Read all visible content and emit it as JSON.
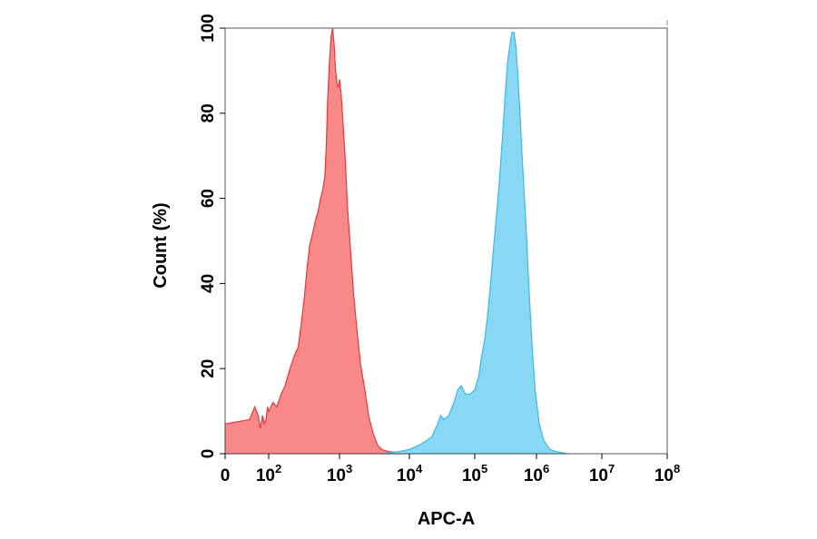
{
  "chart_data": {
    "type": "area",
    "title": "",
    "xlabel": "APC-A",
    "ylabel": "Count  (%)",
    "x_scale": "biexponential",
    "xlim": [
      0,
      100000000
    ],
    "ylim": [
      0,
      100
    ],
    "x_ticks": [
      {
        "value": 0,
        "base": "0",
        "exp": ""
      },
      {
        "value": 100,
        "base": "10",
        "exp": "2"
      },
      {
        "value": 1000,
        "base": "10",
        "exp": "3"
      },
      {
        "value": 10000,
        "base": "10",
        "exp": "4"
      },
      {
        "value": 100000,
        "base": "10",
        "exp": "5"
      },
      {
        "value": 1000000,
        "base": "10",
        "exp": "6"
      },
      {
        "value": 10000000,
        "base": "10",
        "exp": "7"
      },
      {
        "value": 100000000,
        "base": "10",
        "exp": "8"
      }
    ],
    "y_ticks": [
      0,
      20,
      40,
      60,
      80,
      100
    ],
    "grid": false,
    "legend": "none",
    "series": [
      {
        "fill": "#f98888",
        "stroke": "#e8383a",
        "points": [
          [
            0,
            7
          ],
          [
            12,
            8
          ],
          [
            22,
            11
          ],
          [
            32,
            9
          ],
          [
            40,
            6
          ],
          [
            52,
            9
          ],
          [
            62,
            7
          ],
          [
            75,
            8
          ],
          [
            88,
            11
          ],
          [
            100,
            10
          ],
          [
            115,
            12
          ],
          [
            130,
            11
          ],
          [
            150,
            14
          ],
          [
            170,
            16
          ],
          [
            200,
            20
          ],
          [
            230,
            23
          ],
          [
            260,
            25
          ],
          [
            290,
            31
          ],
          [
            320,
            37
          ],
          [
            350,
            44
          ],
          [
            380,
            49
          ],
          [
            420,
            52
          ],
          [
            460,
            55
          ],
          [
            500,
            57
          ],
          [
            540,
            60
          ],
          [
            580,
            62
          ],
          [
            620,
            65
          ],
          [
            650,
            72
          ],
          [
            680,
            83
          ],
          [
            720,
            92
          ],
          [
            760,
            98
          ],
          [
            800,
            100
          ],
          [
            840,
            96
          ],
          [
            880,
            90
          ],
          [
            920,
            87
          ],
          [
            960,
            86
          ],
          [
            1000,
            88
          ],
          [
            1050,
            85
          ],
          [
            1100,
            80
          ],
          [
            1200,
            70
          ],
          [
            1300,
            58
          ],
          [
            1450,
            47
          ],
          [
            1600,
            37
          ],
          [
            1800,
            28
          ],
          [
            2000,
            21
          ],
          [
            2300,
            15
          ],
          [
            2600,
            9
          ],
          [
            3000,
            5
          ],
          [
            3500,
            2
          ],
          [
            4000,
            1
          ],
          [
            5000,
            0.5
          ],
          [
            7000,
            0.3
          ],
          [
            10000,
            0
          ]
        ]
      },
      {
        "fill": "#88d7f3",
        "stroke": "#3fb8e6",
        "points": [
          [
            4000,
            0
          ],
          [
            7000,
            0.5
          ],
          [
            10000,
            1
          ],
          [
            14000,
            2
          ],
          [
            18000,
            3
          ],
          [
            22000,
            4
          ],
          [
            27000,
            7
          ],
          [
            30000,
            9
          ],
          [
            34000,
            8
          ],
          [
            40000,
            9
          ],
          [
            48000,
            12
          ],
          [
            55000,
            15
          ],
          [
            62000,
            16
          ],
          [
            72000,
            14
          ],
          [
            85000,
            14
          ],
          [
            100000,
            15
          ],
          [
            115000,
            18
          ],
          [
            130000,
            23
          ],
          [
            145000,
            27
          ],
          [
            160000,
            32
          ],
          [
            180000,
            40
          ],
          [
            200000,
            48
          ],
          [
            225000,
            56
          ],
          [
            250000,
            64
          ],
          [
            280000,
            74
          ],
          [
            310000,
            84
          ],
          [
            340000,
            92
          ],
          [
            370000,
            96
          ],
          [
            400000,
            99
          ],
          [
            430000,
            99
          ],
          [
            460000,
            96
          ],
          [
            500000,
            89
          ],
          [
            550000,
            78
          ],
          [
            600000,
            67
          ],
          [
            680000,
            53
          ],
          [
            760000,
            38
          ],
          [
            850000,
            25
          ],
          [
            950000,
            15
          ],
          [
            1100000,
            7
          ],
          [
            1300000,
            3
          ],
          [
            1600000,
            1
          ],
          [
            2000000,
            0.5
          ],
          [
            3000000,
            0
          ]
        ]
      }
    ]
  }
}
